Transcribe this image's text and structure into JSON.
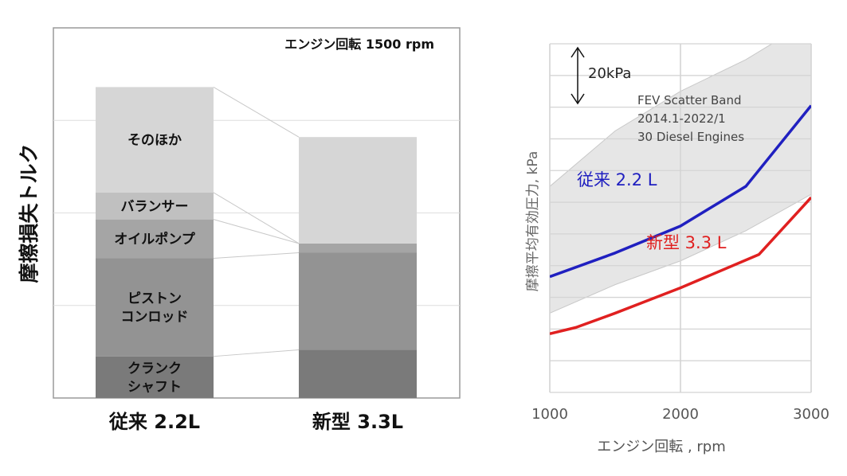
{
  "chart_data": [
    {
      "type": "bar",
      "stacked": true,
      "annotation": "エンジン回転 1500 rpm",
      "ylabel": "摩擦損失トルク",
      "categories": [
        "従来 2.2L",
        "新型 3.3L"
      ],
      "segments": [
        {
          "name": "クランク\nシャフト",
          "values": [
            0.45,
            0.52
          ],
          "color": "#7a7a7a"
        },
        {
          "name": "ピストン\nコンロッド",
          "values": [
            1.06,
            1.05
          ],
          "color": "#939393"
        },
        {
          "name": "オイルポンプ",
          "values": [
            0.42,
            0.1
          ],
          "color": "#a5a5a5"
        },
        {
          "name": "バランサー",
          "values": [
            0.29,
            0.0
          ],
          "color": "#c0c0c0"
        },
        {
          "name": "そのほか",
          "values": [
            1.14,
            1.15
          ],
          "color": "#d6d6d6"
        }
      ],
      "ylim": [
        0,
        4.0
      ],
      "grid": true,
      "legend": "none"
    },
    {
      "type": "line",
      "xlabel": "エンジン回転 , rpm",
      "ylabel": "摩擦平均有効圧力, kPa",
      "xlim": [
        1000,
        3000
      ],
      "ylim": [
        40,
        260
      ],
      "xticks": [
        "1000",
        "2000",
        "3000"
      ],
      "grid": true,
      "scale_label": "20kPa",
      "band": {
        "label": [
          "FEV Scatter Band",
          "2014.1-2022/1",
          "30 Diesel Engines"
        ],
        "upper": [
          [
            1000,
            170
          ],
          [
            1500,
            205
          ],
          [
            2000,
            230
          ],
          [
            2500,
            250
          ],
          [
            3000,
            275
          ]
        ],
        "lower": [
          [
            1000,
            90
          ],
          [
            1500,
            108
          ],
          [
            2000,
            123
          ],
          [
            2500,
            142
          ],
          [
            3000,
            165
          ]
        ],
        "color": "#e6e6e6"
      },
      "series": [
        {
          "name": "従来 2.2 L",
          "color": "#2020c0",
          "x": [
            1000,
            1500,
            2000,
            2500,
            3000
          ],
          "y": [
            113,
            128,
            145,
            170,
            221
          ]
        },
        {
          "name": "新型 3.3 L",
          "color": "#e02020",
          "x": [
            1000,
            1200,
            1500,
            2000,
            2600,
            3000
          ],
          "y": [
            77,
            81,
            90,
            106,
            127,
            163
          ]
        }
      ]
    }
  ]
}
